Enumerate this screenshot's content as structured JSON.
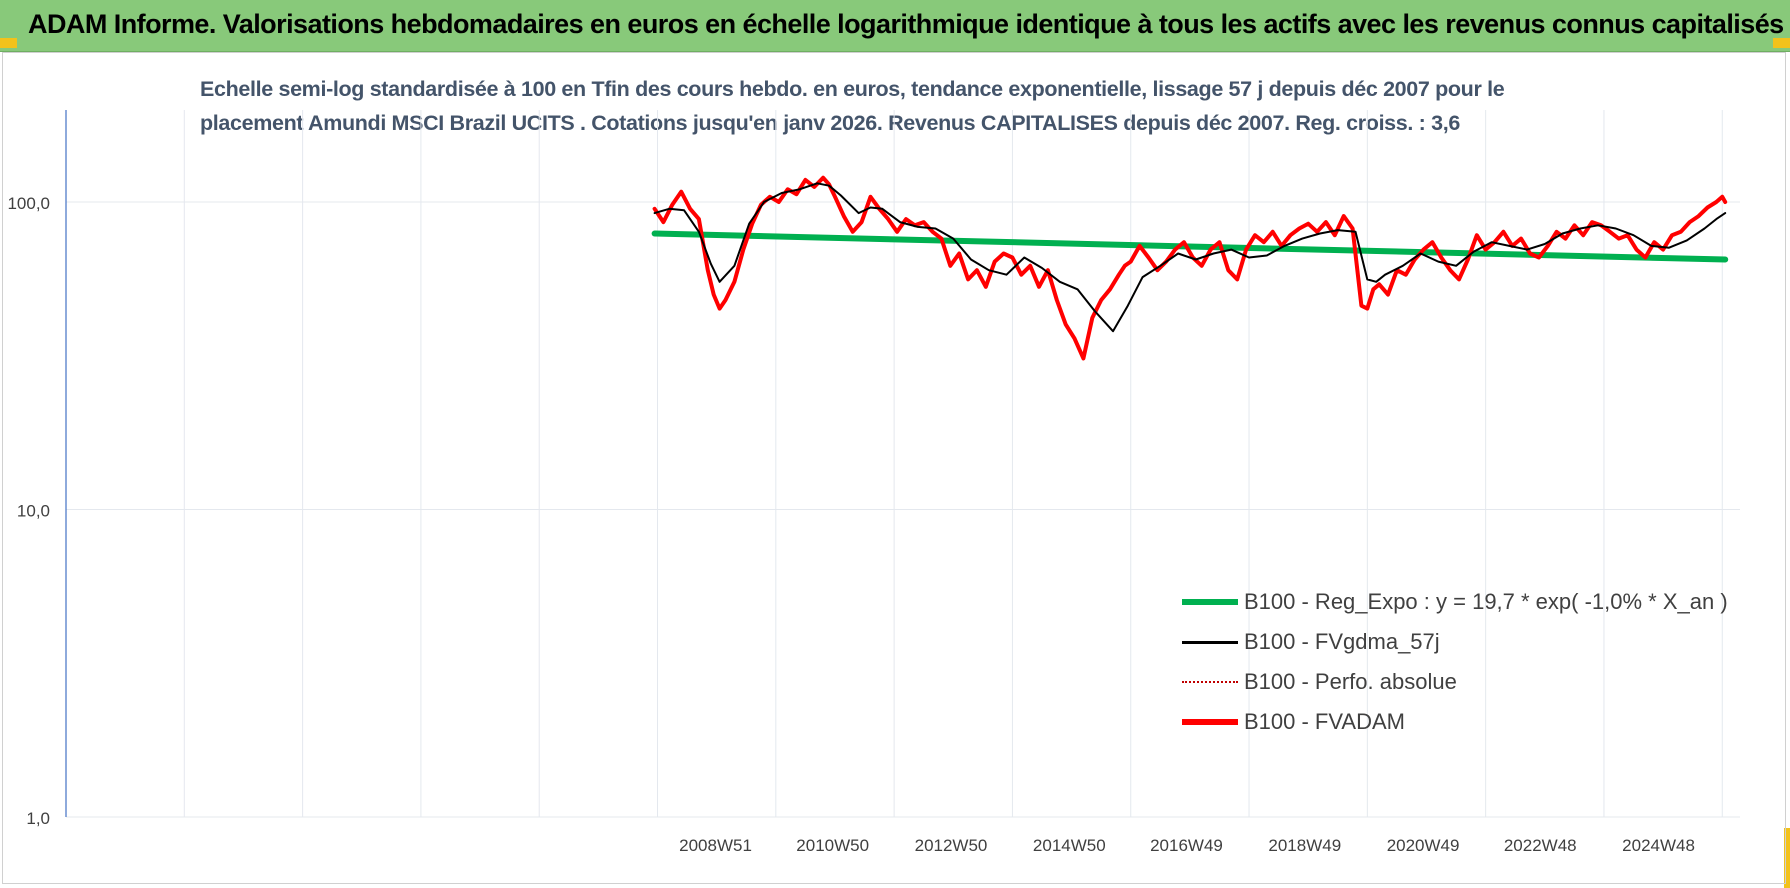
{
  "header": {
    "title": "ADAM Informe. Valorisations hebdomadaires en euros en échelle logarithmique identique à tous les actifs avec les revenus connus capitalisés"
  },
  "colors": {
    "header_bg": "#88c97a",
    "regression": "#00b050",
    "smoothed": "#000000",
    "perf_absolue": "#c00000",
    "fvadam": "#ff0000"
  },
  "chart_data": {
    "type": "line",
    "title_line1": "Echelle semi-log standardisée à 100 en Tfin des cours hebdo. en euros, tendance exponentielle, lissage 57 j depuis déc 2007 pour le",
    "title_line2": "placement Amundi MSCI Brazil UCITS . Cotations jusqu'en janv 2026. Revenus CAPITALISES depuis déc 2007. Reg. croiss. : 3,6",
    "y_scale": "log",
    "ylim": [
      1,
      200
    ],
    "y_tick_labels": [
      "1,0",
      "10,0",
      "100,0"
    ],
    "y_ticks": [
      1,
      10,
      100
    ],
    "x_tick_labels": [
      "2008W51",
      "2010W50",
      "2012W50",
      "2014W50",
      "2016W49",
      "2018W49",
      "2020W49",
      "2022W48",
      "2024W48"
    ],
    "xlim": [
      1998.0,
      2026.3
    ],
    "grid": "vertical and horizontal",
    "legend_position": "bottom-right",
    "legend": [
      "B100 - Reg_Expo : y = 19,7 * exp( -1,0% *  X_an )",
      "B100 - FVgdma_57j",
      "B100 - Perfo. absolue",
      "B100 - FVADAM"
    ],
    "series": [
      {
        "name": "B100 - Reg_Expo : y = 19,7 * exp( -1,0% *  X_an )",
        "x": [
          2007.95,
          2026.05
        ],
        "values": [
          79,
          65
        ]
      },
      {
        "name": "B100 - FVgdma_57j",
        "x": [
          2007.95,
          2008.2,
          2008.45,
          2008.7,
          2008.9,
          2009.05,
          2009.3,
          2009.55,
          2009.8,
          2010.1,
          2010.4,
          2010.7,
          2010.9,
          2011.1,
          2011.4,
          2011.6,
          2011.8,
          2012.1,
          2012.4,
          2012.7,
          2013.0,
          2013.3,
          2013.6,
          2013.9,
          2014.2,
          2014.5,
          2014.8,
          2015.1,
          2015.4,
          2015.7,
          2015.95,
          2016.2,
          2016.5,
          2016.8,
          2017.1,
          2017.4,
          2017.7,
          2018.0,
          2018.3,
          2018.6,
          2018.9,
          2019.2,
          2019.5,
          2019.8,
          2020.0,
          2020.15,
          2020.3,
          2020.6,
          2020.9,
          2021.2,
          2021.5,
          2021.8,
          2022.1,
          2022.4,
          2022.7,
          2023.0,
          2023.3,
          2023.6,
          2023.9,
          2024.2,
          2024.5,
          2024.8,
          2025.1,
          2025.4,
          2025.7,
          2025.9,
          2026.05
        ],
        "values": [
          92,
          95,
          94,
          80,
          63,
          55,
          62,
          85,
          100,
          107,
          110,
          115,
          113,
          105,
          92,
          96,
          95,
          86,
          83,
          82,
          76,
          65,
          60,
          58,
          66,
          61,
          55,
          52,
          44,
          38,
          46,
          57,
          62,
          68,
          65,
          68,
          70,
          66,
          67,
          72,
          76,
          79,
          81,
          80,
          56,
          55,
          58,
          62,
          68,
          64,
          62,
          69,
          74,
          72,
          70,
          73,
          79,
          82,
          84,
          82,
          78,
          72,
          71,
          75,
          82,
          88,
          92
        ]
      },
      {
        "name": "B100 - Perfo. absolue",
        "x": [],
        "values": []
      },
      {
        "name": "B100 - FVADAM",
        "x": [
          2007.95,
          2008.1,
          2008.25,
          2008.4,
          2008.55,
          2008.7,
          2008.85,
          2008.95,
          2009.05,
          2009.15,
          2009.3,
          2009.45,
          2009.6,
          2009.75,
          2009.9,
          2010.05,
          2010.2,
          2010.35,
          2010.5,
          2010.65,
          2010.8,
          2010.9,
          2011.0,
          2011.15,
          2011.3,
          2011.45,
          2011.6,
          2011.75,
          2011.9,
          2012.05,
          2012.2,
          2012.35,
          2012.5,
          2012.65,
          2012.8,
          2012.95,
          2013.1,
          2013.25,
          2013.4,
          2013.55,
          2013.7,
          2013.85,
          2014.0,
          2014.15,
          2014.3,
          2014.45,
          2014.6,
          2014.75,
          2014.9,
          2015.05,
          2015.2,
          2015.35,
          2015.5,
          2015.65,
          2015.8,
          2015.9,
          2016.0,
          2016.15,
          2016.3,
          2016.45,
          2016.6,
          2016.75,
          2016.9,
          2017.05,
          2017.2,
          2017.35,
          2017.5,
          2017.65,
          2017.8,
          2017.95,
          2018.1,
          2018.25,
          2018.4,
          2018.55,
          2018.7,
          2018.85,
          2019.0,
          2019.15,
          2019.3,
          2019.45,
          2019.6,
          2019.75,
          2019.9,
          2020.0,
          2020.1,
          2020.2,
          2020.35,
          2020.5,
          2020.65,
          2020.8,
          2020.95,
          2021.1,
          2021.25,
          2021.4,
          2021.55,
          2021.7,
          2021.85,
          2022.0,
          2022.15,
          2022.3,
          2022.45,
          2022.6,
          2022.75,
          2022.9,
          2023.05,
          2023.2,
          2023.35,
          2023.5,
          2023.65,
          2023.8,
          2023.95,
          2024.1,
          2024.25,
          2024.4,
          2024.55,
          2024.7,
          2024.85,
          2025.0,
          2025.15,
          2025.3,
          2025.45,
          2025.6,
          2025.75,
          2025.9,
          2026.0,
          2026.05
        ],
        "values": [
          95,
          86,
          98,
          108,
          95,
          88,
          60,
          50,
          45,
          48,
          55,
          70,
          85,
          98,
          104,
          100,
          110,
          106,
          118,
          112,
          120,
          114,
          104,
          90,
          80,
          86,
          104,
          95,
          88,
          80,
          88,
          84,
          86,
          80,
          76,
          62,
          68,
          56,
          60,
          53,
          64,
          68,
          66,
          58,
          62,
          53,
          60,
          48,
          40,
          36,
          31,
          42,
          48,
          52,
          58,
          62,
          64,
          72,
          66,
          60,
          64,
          70,
          74,
          66,
          62,
          70,
          74,
          60,
          56,
          70,
          78,
          74,
          80,
          72,
          78,
          82,
          85,
          80,
          86,
          78,
          90,
          82,
          46,
          45,
          52,
          54,
          50,
          60,
          58,
          65,
          70,
          74,
          66,
          60,
          56,
          65,
          78,
          70,
          74,
          80,
          72,
          76,
          68,
          66,
          72,
          80,
          76,
          84,
          78,
          86,
          84,
          80,
          76,
          78,
          70,
          66,
          74,
          70,
          78,
          80,
          86,
          90,
          96,
          100,
          104,
          100
        ]
      }
    ]
  }
}
